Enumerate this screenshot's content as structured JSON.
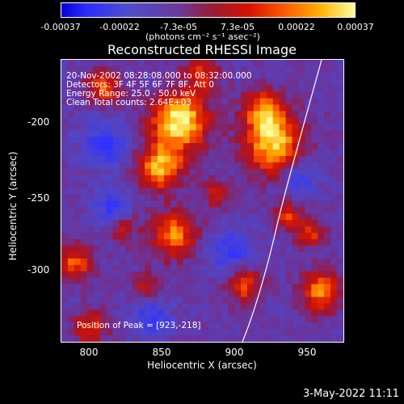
{
  "colorbar": {
    "ticks": [
      "-0.00037",
      "-0.00022",
      "-7.3e-05",
      "7.3e-05",
      "0.00022",
      "0.00037"
    ],
    "units": "(photons cm⁻² s⁻¹ asec⁻²)"
  },
  "title": "Reconstructed RHESSI Image",
  "annotations": {
    "time_range": "20-Nov-2002 08:28:08.000 to 08:32:00.000",
    "detectors": "Detectors: 3F 4F 5F 6F 7F 8F, Att 0",
    "energy": "Energy Range: 25.0 - 50.0 keV",
    "method": "Clean     Total counts: 2.64E+03",
    "peak": "Position of Peak = [923,-218]"
  },
  "axes": {
    "xlabel": "Heliocentric X (arcsec)",
    "ylabel": "Heliocentric Y (arcsec)",
    "xticks": [
      "800",
      "850",
      "900",
      "950"
    ],
    "yticks": [
      "-200",
      "-250",
      "-300"
    ]
  },
  "timestamp": "3-May-2022 11:11",
  "colors": {
    "limb": "#ffffff",
    "background": "#000000"
  }
}
